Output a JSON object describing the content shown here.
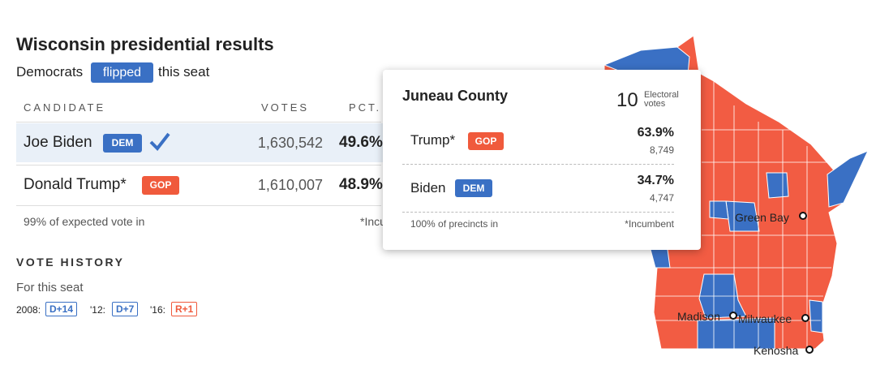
{
  "header": {
    "title": "Wisconsin presidential results",
    "flip_prefix": "Democrats",
    "flip_badge": "flipped",
    "flip_suffix": "this seat"
  },
  "table": {
    "columns": [
      "CANDIDATE",
      "VOTES",
      "PCT."
    ],
    "rows": [
      {
        "name": "Joe Biden",
        "party": "DEM",
        "votes": "1,630,542",
        "pct": "49.6%"
      },
      {
        "name": "Donald Trump*",
        "party": "GOP",
        "votes": "1,610,007",
        "pct": "48.9%"
      }
    ],
    "footnote": "99% of expected vote in",
    "incumbent_note": "*Incumbent"
  },
  "vote_history": {
    "title": "VOTE HISTORY",
    "subtitle": "For this seat",
    "entries": [
      {
        "year": "2008:",
        "margin": "D+14"
      },
      {
        "year": "'12:",
        "margin": "D+7"
      },
      {
        "year": "'16:",
        "margin": "R+1"
      }
    ]
  },
  "tooltip": {
    "county": "Juneau County",
    "electoral_count": "10",
    "electoral_label_1": "Electoral",
    "electoral_label_2": "votes",
    "rows": [
      {
        "name": "Trump*",
        "party": "GOP",
        "pct": "63.9%",
        "votes": "8,749"
      },
      {
        "name": "Biden",
        "party": "DEM",
        "pct": "34.7%",
        "votes": "4,747"
      }
    ],
    "footnote": "100% of precincts in",
    "incumbent_note": "*Incumbent"
  },
  "map": {
    "cities": [
      "Green Bay",
      "Madison",
      "Milwaukee",
      "Kenosha"
    ]
  }
}
